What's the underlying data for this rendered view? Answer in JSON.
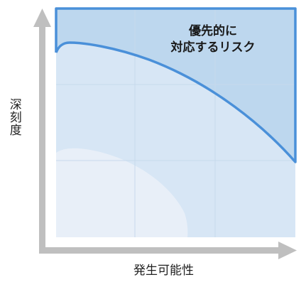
{
  "axes": {
    "y_label": "深刻度",
    "x_label": "発生可能性"
  },
  "zones": {
    "priority": {
      "label_line1": "優先的に",
      "label_line2": "対応するリスク"
    }
  },
  "colors": {
    "axis_arrow": "#bfbfbf",
    "priority_fill": "#bdd7ee",
    "priority_border": "#4a90d9",
    "mid_fill": "#d7e6f5",
    "low_fill": "#e8eff8",
    "grid": "#c7d9ec"
  }
}
